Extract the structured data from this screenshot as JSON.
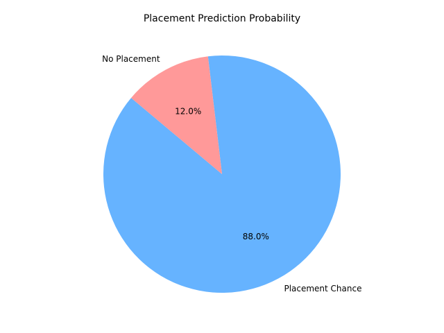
{
  "chart_data": {
    "type": "pie",
    "title": "Placement Prediction Probability",
    "labels": [
      "Placement Chance",
      "No Placement"
    ],
    "values": [
      88.0,
      12.0
    ],
    "percent_labels": [
      "88.0%",
      "12.0%"
    ],
    "colors": [
      "#66b3ff",
      "#ff9999"
    ],
    "start_angle_deg": 140,
    "direction": "counterclockwise",
    "legend": "none"
  }
}
